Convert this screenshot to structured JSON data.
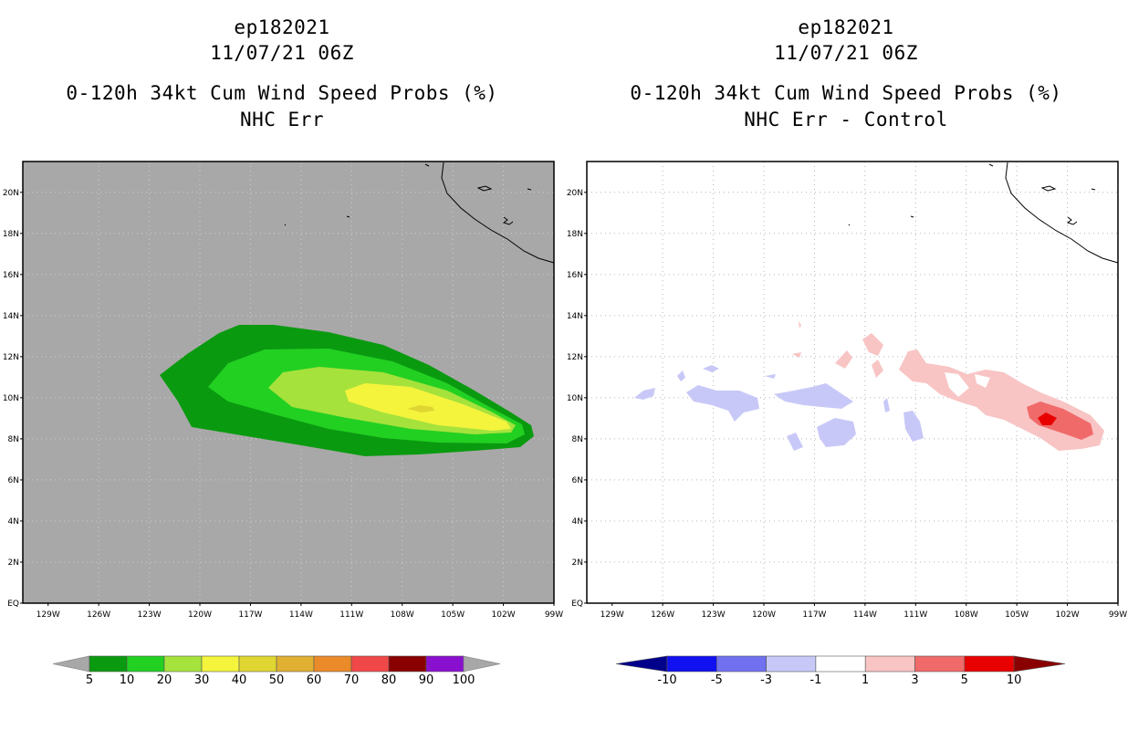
{
  "chart_data": [
    {
      "type": "filled-contour-map",
      "title": [
        "ep182021",
        "11/07/21 06Z"
      ],
      "subtitle": [
        "0-120h 34kt Cum Wind Speed Probs (%)",
        "NHC Err"
      ],
      "x_ticks": [
        "129W",
        "126W",
        "123W",
        "120W",
        "117W",
        "114W",
        "111W",
        "108W",
        "105W",
        "102W",
        "99W"
      ],
      "y_ticks": [
        "EQ",
        "2N",
        "4N",
        "6N",
        "8N",
        "10N",
        "12N",
        "14N",
        "16N",
        "18N",
        "20N"
      ],
      "xlim": [
        -130.5,
        -99
      ],
      "ylim": [
        0,
        21.5
      ],
      "background": "#a8a8a8",
      "levels": [
        {
          "min": 5,
          "color": "#0a9a10"
        },
        {
          "min": 10,
          "color": "#22d022"
        },
        {
          "min": 20,
          "color": "#a6e23c"
        },
        {
          "min": 30,
          "color": "#f4f43c"
        },
        {
          "min": 40,
          "color": "#e0d632"
        }
      ],
      "colorbar": {
        "labels": [
          "5",
          "10",
          "20",
          "30",
          "40",
          "50",
          "60",
          "70",
          "80",
          "90",
          "100"
        ],
        "colors": [
          "#0a9a10",
          "#22d022",
          "#a6e23c",
          "#f4f43c",
          "#e0d632",
          "#e0b032",
          "#ea8a28",
          "#f04848",
          "#8a0000",
          "#8a10d0"
        ]
      }
    },
    {
      "type": "filled-contour-map",
      "title": [
        "ep182021",
        "11/07/21 06Z"
      ],
      "subtitle": [
        "0-120h 34kt Cum Wind Speed Probs (%)",
        "NHC Err - Control"
      ],
      "x_ticks": [
        "129W",
        "126W",
        "123W",
        "120W",
        "117W",
        "114W",
        "111W",
        "108W",
        "105W",
        "102W",
        "99W"
      ],
      "y_ticks": [
        "EQ",
        "2N",
        "4N",
        "6N",
        "8N",
        "10N",
        "12N",
        "14N",
        "16N",
        "18N",
        "20N"
      ],
      "xlim": [
        -130.5,
        -99
      ],
      "ylim": [
        0,
        21.5
      ],
      "background": "#ffffff",
      "levels": [
        {
          "range": [
            -3,
            -1
          ],
          "color": "#c8c8f8"
        },
        {
          "range": [
            1,
            3
          ],
          "color": "#f8c4c4"
        },
        {
          "range": [
            3,
            5
          ],
          "color": "#f06a6a"
        },
        {
          "range": [
            5,
            10
          ],
          "color": "#e80000"
        }
      ],
      "colorbar": {
        "labels": [
          "-10",
          "-5",
          "-3",
          "-1",
          "1",
          "3",
          "5",
          "10"
        ],
        "colors": [
          "#00008a",
          "#1010f0",
          "#7070f0",
          "#c8c8f8",
          "#ffffff",
          "#f8c4c4",
          "#f06a6a",
          "#e80000",
          "#8a0000"
        ]
      }
    }
  ]
}
